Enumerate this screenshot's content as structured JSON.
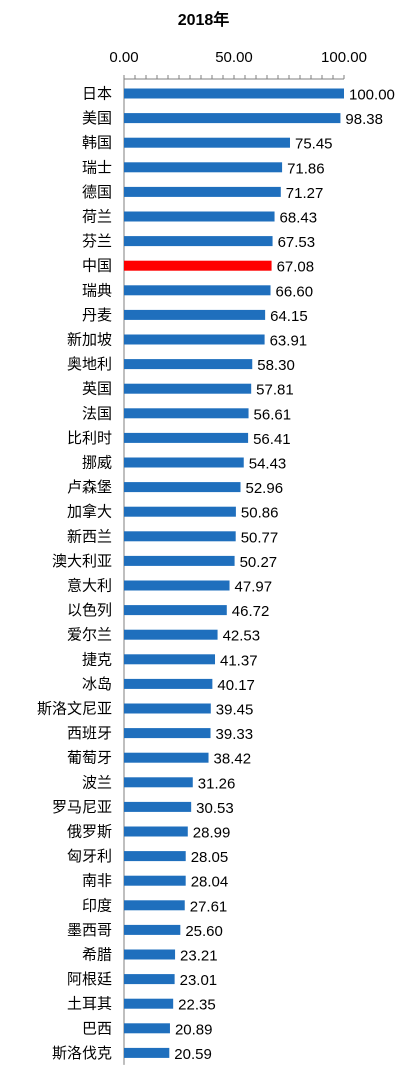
{
  "chart_data": {
    "type": "bar",
    "orientation": "horizontal",
    "title": "2018年",
    "xlabel": "",
    "ylabel": "",
    "xlim": [
      0,
      100
    ],
    "x_ticks": [
      "0.00",
      "50.00",
      "100.00"
    ],
    "axis_position": "top",
    "grid": false,
    "default_color": "#1f6fbd",
    "highlight_color": "#ff0000",
    "highlight_category": "中国",
    "categories": [
      "日本",
      "美国",
      "韩国",
      "瑞士",
      "德国",
      "荷兰",
      "芬兰",
      "中国",
      "瑞典",
      "丹麦",
      "新加坡",
      "奥地利",
      "英国",
      "法国",
      "比利时",
      "挪威",
      "卢森堡",
      "加拿大",
      "新西兰",
      "澳大利亚",
      "意大利",
      "以色列",
      "爱尔兰",
      "捷克",
      "冰岛",
      "斯洛文尼亚",
      "西班牙",
      "葡萄牙",
      "波兰",
      "罗马尼亚",
      "俄罗斯",
      "匈牙利",
      "南非",
      "印度",
      "墨西哥",
      "希腊",
      "阿根廷",
      "土耳其",
      "巴西",
      "斯洛伐克"
    ],
    "values": [
      100.0,
      98.38,
      75.45,
      71.86,
      71.27,
      68.43,
      67.53,
      67.08,
      66.6,
      64.15,
      63.91,
      58.3,
      57.81,
      56.61,
      56.41,
      54.43,
      52.96,
      50.86,
      50.77,
      50.27,
      47.97,
      46.72,
      42.53,
      41.37,
      40.17,
      39.45,
      39.33,
      38.42,
      31.26,
      30.53,
      28.99,
      28.05,
      28.04,
      27.61,
      25.6,
      23.21,
      23.01,
      22.35,
      20.89,
      20.59
    ],
    "value_labels": [
      "100.00",
      "98.38",
      "75.45",
      "71.86",
      "71.27",
      "68.43",
      "67.53",
      "67.08",
      "66.60",
      "64.15",
      "63.91",
      "58.30",
      "57.81",
      "56.61",
      "56.41",
      "54.43",
      "52.96",
      "50.86",
      "50.77",
      "50.27",
      "47.97",
      "46.72",
      "42.53",
      "41.37",
      "40.17",
      "39.45",
      "39.33",
      "38.42",
      "31.26",
      "30.53",
      "28.99",
      "28.05",
      "28.04",
      "27.61",
      "25.60",
      "23.21",
      "23.01",
      "22.35",
      "20.89",
      "20.59"
    ]
  }
}
